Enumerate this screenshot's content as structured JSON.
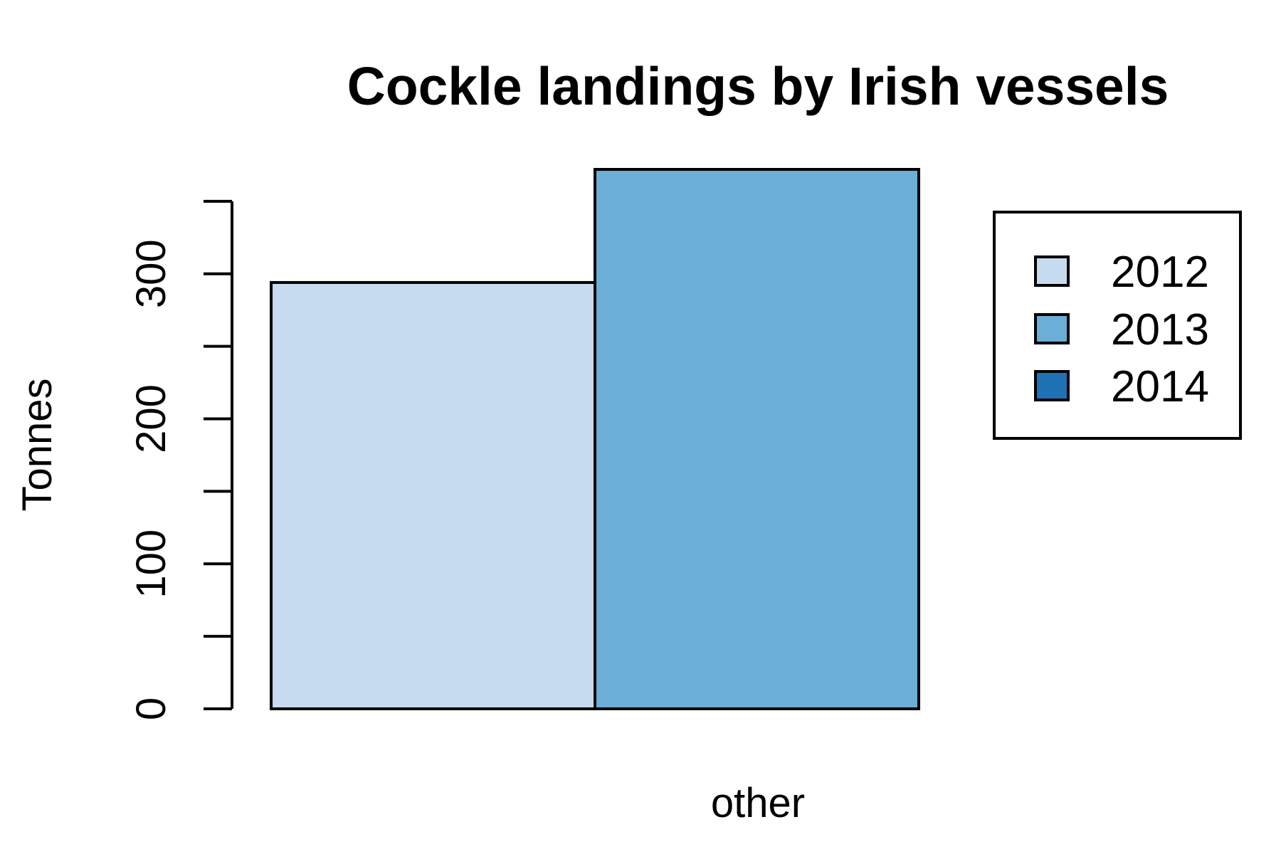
{
  "chart_data": {
    "type": "bar",
    "title": "Cockle landings by Irish vessels",
    "xlabel": "",
    "ylabel": "Tonnes",
    "categories": [
      "other"
    ],
    "series": [
      {
        "name": "2012",
        "values": [
          294
        ],
        "color": "#C6DBEF"
      },
      {
        "name": "2013",
        "values": [
          372
        ],
        "color": "#6BAED6"
      },
      {
        "name": "2014",
        "values": [
          0
        ],
        "color": "#2171B5"
      }
    ],
    "yticks": [
      0,
      50,
      100,
      150,
      200,
      250,
      300,
      350
    ],
    "ytick_labels": [
      "0",
      "",
      "100",
      "",
      "200",
      "",
      "300",
      ""
    ],
    "ylim": [
      0,
      372
    ],
    "grid": false,
    "legend_position": "top-right"
  }
}
